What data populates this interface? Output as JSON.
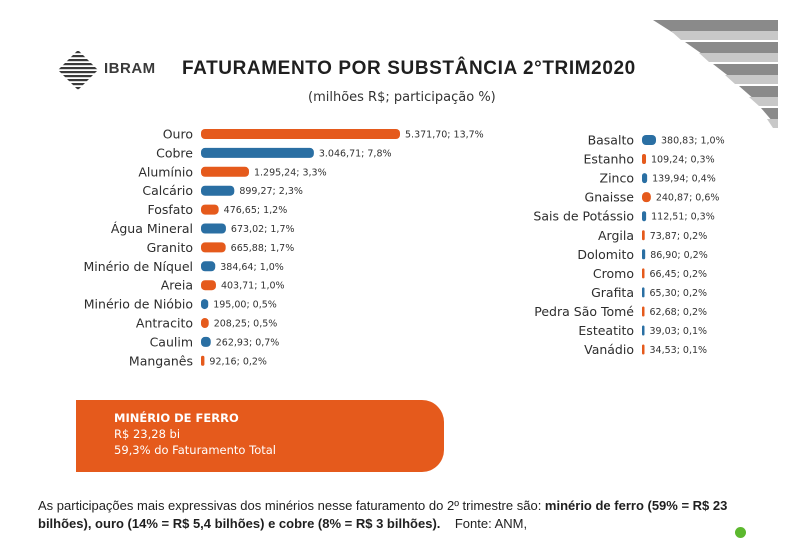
{
  "header": {
    "logo_text": "IBRAM",
    "title": "FATURAMENTO POR SUBSTÂNCIA 2°TRIM2020",
    "subtitle": "(milhões R$; participação %)"
  },
  "colors": {
    "orange": "#e55a1c",
    "blue": "#2a6fa3",
    "green_dot": "#5cb82e"
  },
  "chart_data": [
    {
      "type": "bar",
      "orientation": "horizontal",
      "unit": "milhões R$",
      "categories": [
        "Ouro",
        "Cobre",
        "Alumínio",
        "Calcário",
        "Fosfato",
        "Água Mineral",
        "Granito",
        "Minério de Níquel",
        "Areia",
        "Minério de Nióbio",
        "Antracito",
        "Caulim",
        "Manganês"
      ],
      "values": [
        5371.7,
        3046.71,
        1295.24,
        899.27,
        476.65,
        673.02,
        665.88,
        384.64,
        403.71,
        195.0,
        208.25,
        262.93,
        92.16
      ],
      "labels": [
        "5.371,70; 13,7%",
        "3.046,71; 7,8%",
        "1.295,24; 3,3%",
        "899,27; 2,3%",
        "476,65; 1,2%",
        "673,02; 1,7%",
        "665,88; 1,7%",
        "384,64; 1,0%",
        "403,71; 1,0%",
        "195,00; 0,5%",
        "208,25; 0,5%",
        "262,93; 0,7%",
        "92,16; 0,2%"
      ],
      "bar_colors": [
        "orange",
        "blue",
        "orange",
        "blue",
        "orange",
        "blue",
        "orange",
        "blue",
        "orange",
        "blue",
        "orange",
        "blue",
        "orange"
      ]
    },
    {
      "type": "bar",
      "orientation": "horizontal",
      "unit": "milhões R$",
      "categories": [
        "Basalto",
        "Estanho",
        "Zinco",
        "Gnaisse",
        "Sais de Potássio",
        "Argila",
        "Dolomito",
        "Cromo",
        "Grafita",
        "Pedra São Tomé",
        "Esteatito",
        "Vanádio"
      ],
      "values": [
        380.83,
        109.24,
        139.94,
        240.87,
        112.51,
        73.87,
        86.9,
        66.45,
        65.3,
        62.68,
        39.03,
        34.53
      ],
      "labels": [
        "380,83; 1,0%",
        "109,24; 0,3%",
        "139,94; 0,4%",
        "240,87; 0,6%",
        "112,51; 0,3%",
        "73,87; 0,2%",
        "86,90; 0,2%",
        "66,45; 0,2%",
        "65,30; 0,2%",
        "62,68; 0,2%",
        "39,03; 0,1%",
        "34,53; 0,1%"
      ],
      "bar_colors": [
        "blue",
        "orange",
        "blue",
        "orange",
        "blue",
        "orange",
        "blue",
        "orange",
        "blue",
        "orange",
        "blue",
        "orange"
      ]
    }
  ],
  "banner": {
    "title": "MINÉRIO DE FERRO",
    "value": "R$ 23,28 bi",
    "share": "59,3% do Faturamento Total"
  },
  "footer": {
    "text_part1": "As participações mais expressivas dos minérios nesse faturamento do 2º trimestre são: ",
    "bold_part": "minério de ferro (59% = R$ 23 bilhões), ouro (14% = R$ 5,4 bilhões) e cobre (8% = R$ 3 bilhões).",
    "source": "Fonte: ANM,"
  }
}
